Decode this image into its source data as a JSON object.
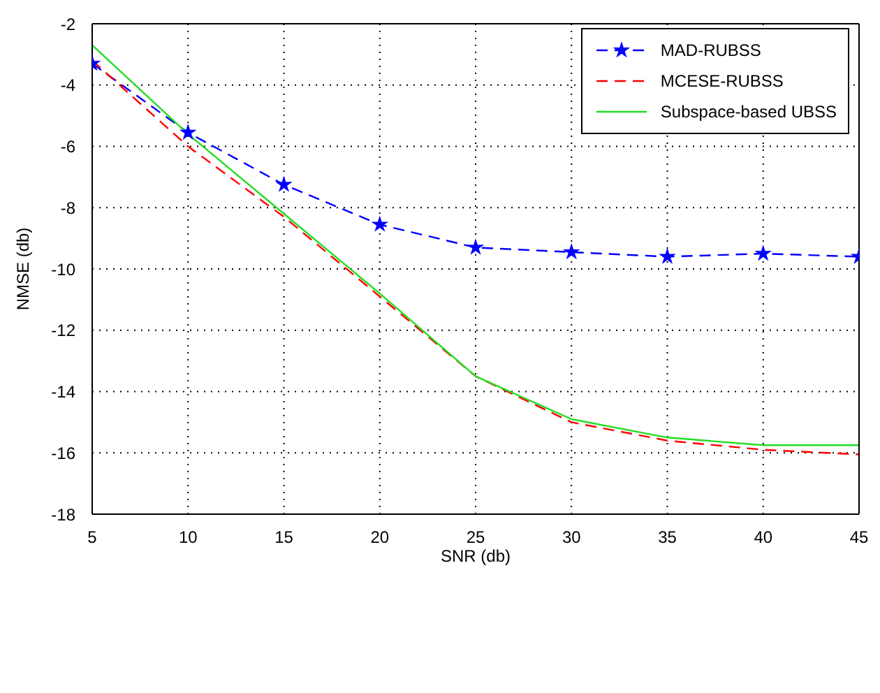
{
  "chart_data": {
    "type": "line",
    "xlabel": "SNR (db)",
    "ylabel": "NMSE (db)",
    "x": [
      5,
      10,
      15,
      20,
      25,
      30,
      35,
      40,
      45
    ],
    "series": [
      {
        "name": "MAD-RUBSS",
        "color": "#0000ff",
        "marker": "star",
        "line_style": "dashed",
        "values": [
          -3.3,
          -5.55,
          -7.25,
          -8.55,
          -9.3,
          -9.45,
          -9.6,
          -9.5,
          -9.6
        ]
      },
      {
        "name": "MCESE-RUBSS",
        "color": "#ff0000",
        "marker": "none",
        "line_style": "dashed",
        "values": [
          -3.2,
          -6.0,
          -8.3,
          -10.9,
          -13.5,
          -15.0,
          -15.6,
          -15.9,
          -16.05
        ]
      },
      {
        "name": "Subspace-based UBSS",
        "color": "#22dd22",
        "marker": "none",
        "line_style": "solid",
        "values": [
          -2.7,
          -5.6,
          -8.2,
          -10.8,
          -13.5,
          -14.9,
          -15.5,
          -15.75,
          -15.75
        ]
      }
    ],
    "xlim": [
      5,
      45
    ],
    "xticks": [
      5,
      10,
      15,
      20,
      25,
      30,
      35,
      40,
      45
    ],
    "ylim": [
      -18,
      -2
    ],
    "yticks": [
      -18,
      -16,
      -14,
      -12,
      -10,
      -8,
      -6,
      -4,
      -2
    ],
    "grid": true,
    "legend": "top right"
  }
}
